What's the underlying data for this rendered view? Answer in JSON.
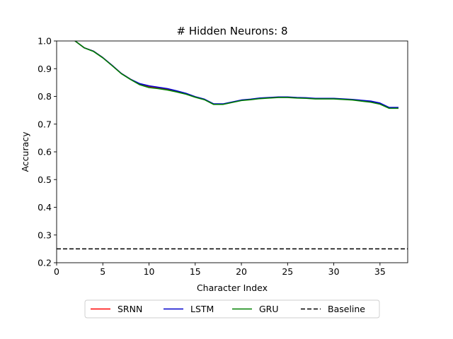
{
  "chart_data": {
    "type": "line",
    "title": "# Hidden Neurons: 8",
    "xlabel": "Character Index",
    "ylabel": "Accuracy",
    "xlim": [
      0,
      38
    ],
    "ylim": [
      0.2,
      1.0
    ],
    "xticks": [
      0,
      5,
      10,
      15,
      20,
      25,
      30,
      35
    ],
    "yticks": [
      0.2,
      0.3,
      0.4,
      0.5,
      0.6,
      0.7,
      0.8,
      0.9,
      1.0
    ],
    "legend_position": "below-center",
    "x": [
      1,
      2,
      3,
      4,
      5,
      6,
      7,
      8,
      9,
      10,
      11,
      12,
      13,
      14,
      15,
      16,
      17,
      18,
      19,
      20,
      21,
      22,
      23,
      24,
      25,
      26,
      27,
      28,
      29,
      30,
      31,
      32,
      33,
      34,
      35,
      36,
      37
    ],
    "series": [
      {
        "name": "SRNN",
        "color": "#ff0000",
        "style": "solid",
        "values": [
          1.02,
          1.0,
          0.975,
          0.963,
          0.94,
          0.912,
          0.883,
          0.862,
          0.844,
          0.836,
          0.831,
          0.826,
          0.818,
          0.81,
          0.798,
          0.789,
          0.772,
          0.772,
          0.779,
          0.786,
          0.789,
          0.793,
          0.795,
          0.797,
          0.797,
          0.795,
          0.794,
          0.792,
          0.792,
          0.792,
          0.79,
          0.788,
          0.785,
          0.782,
          0.774,
          0.758,
          0.758
        ]
      },
      {
        "name": "LSTM",
        "color": "#0000cc",
        "style": "solid",
        "values": [
          1.02,
          1.0,
          0.975,
          0.963,
          0.94,
          0.912,
          0.883,
          0.862,
          0.846,
          0.838,
          0.833,
          0.828,
          0.82,
          0.811,
          0.799,
          0.79,
          0.773,
          0.773,
          0.78,
          0.787,
          0.79,
          0.794,
          0.796,
          0.798,
          0.798,
          0.796,
          0.795,
          0.793,
          0.793,
          0.793,
          0.791,
          0.789,
          0.786,
          0.783,
          0.776,
          0.76,
          0.76
        ]
      },
      {
        "name": "GRU",
        "color": "#008000",
        "style": "solid",
        "values": [
          1.02,
          1.0,
          0.975,
          0.962,
          0.939,
          0.911,
          0.882,
          0.861,
          0.842,
          0.832,
          0.828,
          0.823,
          0.816,
          0.808,
          0.797,
          0.788,
          0.771,
          0.771,
          0.778,
          0.785,
          0.788,
          0.792,
          0.794,
          0.796,
          0.796,
          0.794,
          0.793,
          0.791,
          0.791,
          0.791,
          0.789,
          0.787,
          0.783,
          0.779,
          0.772,
          0.757,
          0.757
        ]
      },
      {
        "name": "Baseline",
        "color": "#000000",
        "style": "dashed",
        "values": [
          0.25,
          0.25,
          0.25,
          0.25,
          0.25,
          0.25,
          0.25,
          0.25,
          0.25,
          0.25,
          0.25,
          0.25,
          0.25,
          0.25,
          0.25,
          0.25,
          0.25,
          0.25,
          0.25,
          0.25,
          0.25,
          0.25,
          0.25,
          0.25,
          0.25,
          0.25,
          0.25,
          0.25,
          0.25,
          0.25,
          0.25,
          0.25,
          0.25,
          0.25,
          0.25,
          0.25,
          0.25
        ],
        "x_extent": [
          0,
          38
        ]
      }
    ]
  }
}
